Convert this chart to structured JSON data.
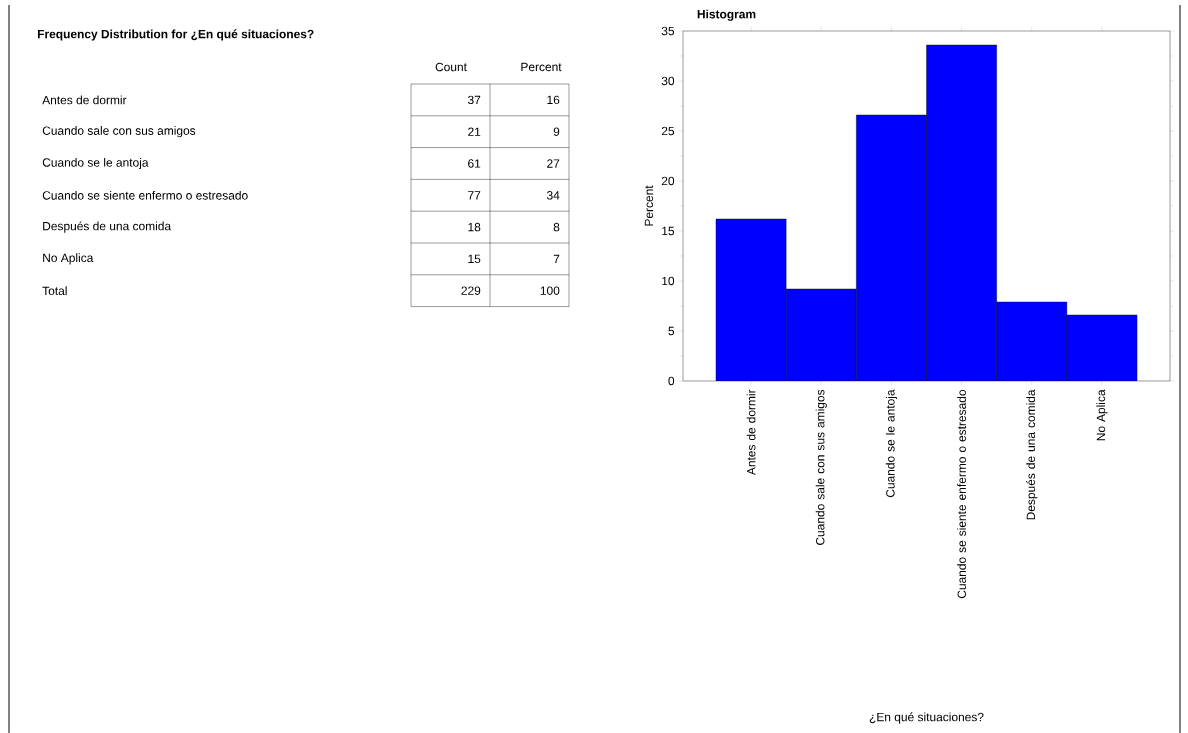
{
  "chart_data": [
    {
      "type": "other",
      "title": "Frequency Distribution for ¿En qué situaciones?",
      "data_labels": true,
      "categories": [
        "Antes de dormir",
        "Cuando sale con sus amigos",
        "Cuando se le antoja",
        "Cuando se siente enfermo o estresado",
        "Después de una comida",
        "No Aplica",
        "Total"
      ],
      "series": [
        {
          "name": "Count",
          "values": [
            37,
            21,
            61,
            77,
            18,
            15,
            229
          ]
        },
        {
          "name": "Percent",
          "values": [
            16,
            9,
            27,
            34,
            8,
            7,
            100
          ]
        }
      ]
    },
    {
      "type": "bar",
      "title": "Histogram",
      "categories": [
        "Antes de dormir",
        "Cuando sale con sus amigos",
        "Cuando se le antoja",
        "Cuando se siente enfermo o estresado",
        "Después de una comida",
        "No Aplica"
      ],
      "values": [
        16.2,
        9.2,
        26.6,
        33.6,
        7.9,
        6.6
      ],
      "color": "#0000ff",
      "xlabel": "¿En qué situaciones?",
      "ylabel": "Percent",
      "ylim": [
        0,
        35
      ],
      "yticks": [
        0,
        5,
        10,
        15,
        20,
        25,
        30,
        35
      ]
    }
  ]
}
